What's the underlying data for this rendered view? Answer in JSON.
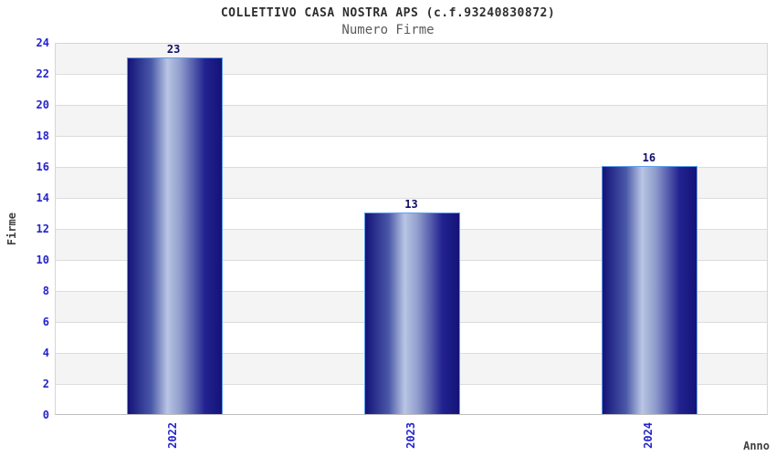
{
  "chart_data": {
    "type": "bar",
    "title": "COLLETTIVO CASA NOSTRA APS (c.f.93240830872)",
    "subtitle": "Numero Firme",
    "categories": [
      "2022",
      "2023",
      "2024"
    ],
    "values": [
      23,
      13,
      16
    ],
    "xlabel": "Anno",
    "ylabel": "Firme",
    "ylim": [
      0,
      24
    ],
    "ytick_step": 2,
    "y_ticks": [
      0,
      2,
      4,
      6,
      8,
      10,
      12,
      14,
      16,
      18,
      20,
      22,
      24
    ],
    "grid": true,
    "legend": "none",
    "colors": {
      "background": "#ffffff",
      "stripe_gray": "#f4f4f4",
      "stripe_white": "#ffffff",
      "gridline": "#dcdcdc",
      "plot_border": "#d6d6d6",
      "bar_dark": "#131378",
      "bar_mid": "#4a58a8",
      "bar_light": "#b9c5e3",
      "bar_border": "#5fa0ea",
      "tick_label": "#2424cc",
      "value_label": "#10106a",
      "axis_label": "#404040",
      "title_color": "#2e2e2e",
      "subtitle_color": "#5a5a5a"
    }
  }
}
